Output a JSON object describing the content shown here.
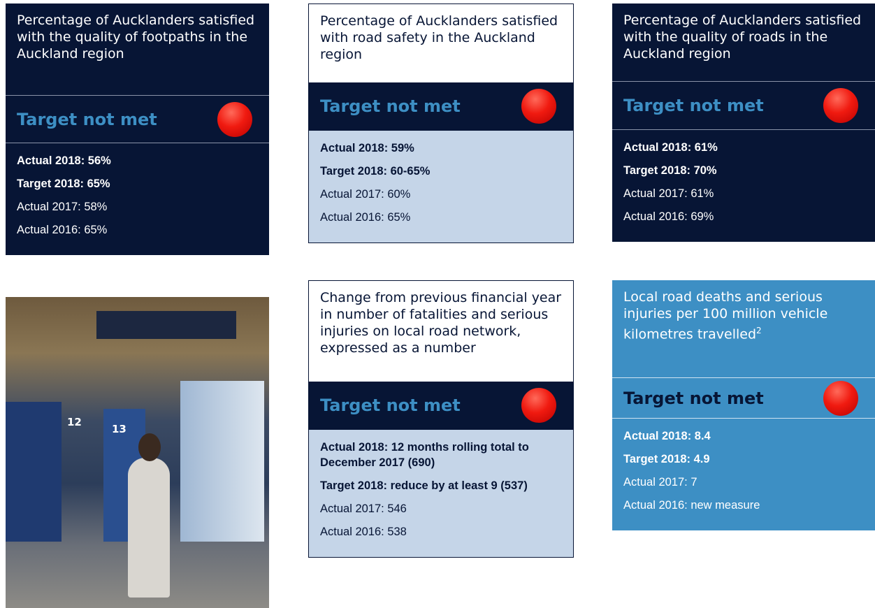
{
  "cards": [
    {
      "title": "Percentage of Aucklanders satisfied with the quality of footpaths in the Auckland region",
      "status": "Target not met",
      "highlights": [
        "Actual 2018: 56%",
        "Target 2018: 65%"
      ],
      "history": [
        "Actual 2017: 58%",
        "Actual 2016: 65%"
      ]
    },
    {
      "title": "Percentage of Aucklanders satisfied with road safety in the Auckland region",
      "status": "Target not met",
      "highlights": [
        "Actual 2018: 59%",
        "Target 2018: 60-65%"
      ],
      "history": [
        "Actual 2017: 60%",
        "Actual 2016: 65%"
      ]
    },
    {
      "title": "Percentage of Aucklanders satisfied with the quality of roads in the Auckland region",
      "status": "Target not met",
      "highlights": [
        "Actual 2018: 61%",
        "Target 2018: 70%"
      ],
      "history": [
        "Actual 2017: 61%",
        "Actual 2016: 69%"
      ]
    },
    {
      "title": "Change from previous financial year in number of fatalities and serious injuries on local road network, expressed as a number",
      "status": "Target not met",
      "highlights": [
        "Actual 2018: 12 months rolling total to December 2017 (690)",
        "Target 2018: reduce by at least 9 (537)"
      ],
      "history": [
        "Actual 2017: 546",
        "Actual 2016: 538"
      ]
    },
    {
      "title": "Local road deaths and serious injuries per 100 million vehicle kilometres travelled",
      "footnote": "2",
      "status": "Target not met",
      "highlights": [
        "Actual 2018: 8.4",
        "Target 2018: 4.9"
      ],
      "history": [
        "Actual 2017: 7",
        "Actual 2016: new measure"
      ]
    }
  ],
  "photo": {
    "signs": [
      "12",
      "13"
    ]
  }
}
